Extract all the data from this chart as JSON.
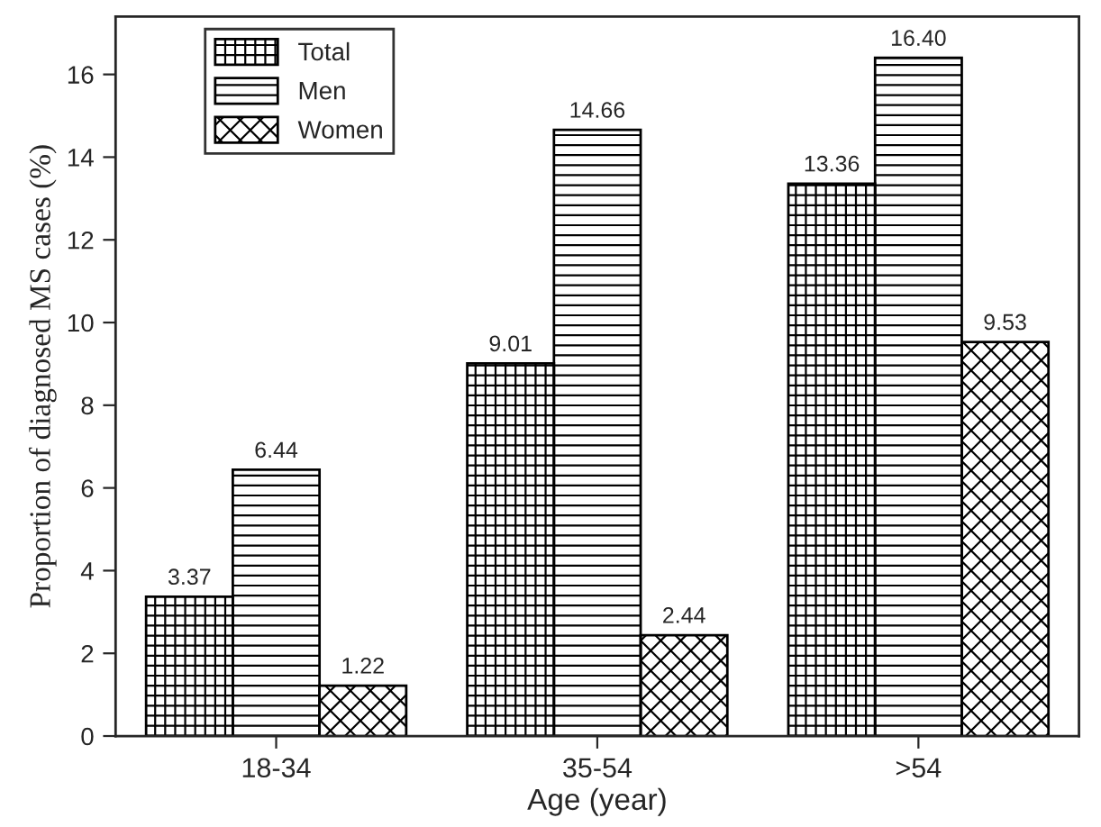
{
  "chart_data": {
    "type": "bar",
    "xlabel": "Age (year)",
    "ylabel": "Proportion of diagnosed MS cases (%)",
    "categories": [
      "18-34",
      "35-54",
      ">54"
    ],
    "series": [
      {
        "name": "Total",
        "color": "#000000",
        "values": [
          3.37,
          9.01,
          13.36
        ]
      },
      {
        "name": "Men",
        "color": "#000000",
        "values": [
          6.44,
          14.66,
          16.4
        ]
      },
      {
        "name": "Women",
        "color": "#000000",
        "values": [
          1.22,
          2.44,
          9.53
        ]
      }
    ],
    "value_labels": [
      [
        "3.37",
        "9.01",
        "13.36"
      ],
      [
        "6.44",
        "14.66",
        "16.40"
      ],
      [
        "1.22",
        "2.44",
        "9.53"
      ]
    ],
    "ylim": [
      0,
      17.4
    ],
    "yticks": [
      0,
      2,
      4,
      6,
      8,
      10,
      12,
      14,
      16
    ],
    "legend": "top left",
    "grid": false
  }
}
